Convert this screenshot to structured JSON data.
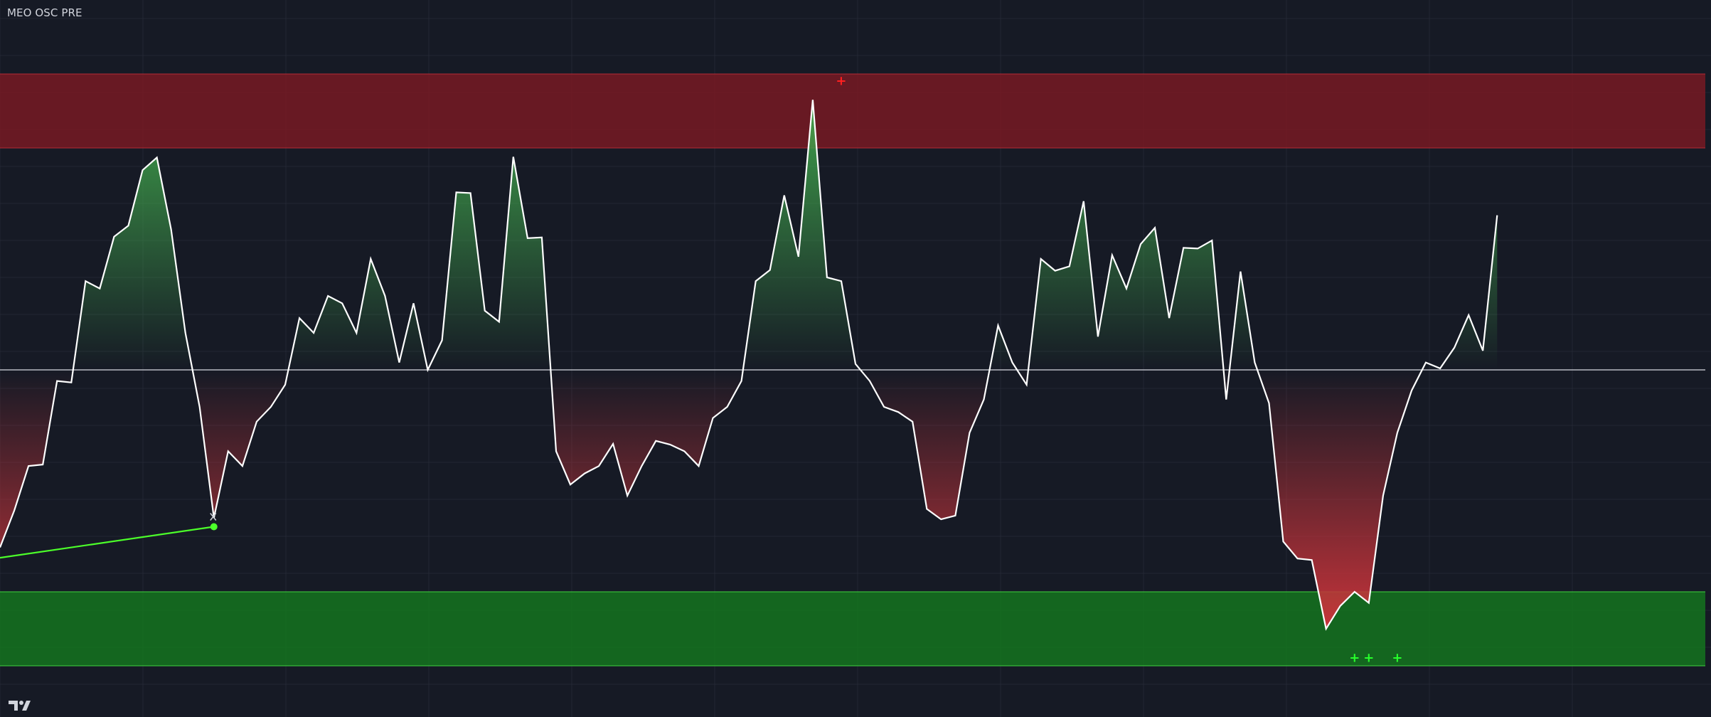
{
  "indicator": {
    "title": "MEO OSC PRE"
  },
  "logo": {
    "icon": "tradingview-logo-icon"
  },
  "chart_data": {
    "type": "line",
    "title": "MEO OSC PRE",
    "xlabel": "",
    "ylabel": "",
    "ylim": [
      -55,
      47
    ],
    "grid": true,
    "zero_line": 0,
    "zones": {
      "overbought": {
        "from": 30,
        "to": 40,
        "color": "#801922"
      },
      "oversold": {
        "from": -40,
        "to": -30,
        "color": "#13781f"
      }
    },
    "colors": {
      "line": "#ffffff",
      "positive_fill": "#3fa14b",
      "negative_fill": "#c4333a",
      "divergence": "#4cff2a",
      "signal_up": "#27ff2b",
      "signal_down": "#ff2020"
    },
    "series": [
      {
        "values": [
          -24,
          -19,
          -13,
          -12.8,
          -1.5,
          -1.7,
          12,
          11,
          18,
          19.5,
          27,
          28.7,
          19,
          5,
          -5,
          -20,
          -11,
          -13,
          -7,
          -5,
          -2,
          7,
          5,
          10,
          9,
          5,
          15,
          10,
          1,
          9,
          0,
          4,
          24,
          23.9,
          8,
          6.5,
          28.8,
          17.8,
          17.9,
          -11,
          -15.5,
          -14,
          -13,
          -10,
          -17,
          -13,
          -9.6,
          -10.1,
          -11,
          -13,
          -6.5,
          -5,
          -1.5,
          12,
          13.5,
          23.6,
          15.3,
          36.5,
          12.5,
          12,
          0.8,
          -1.5,
          -5,
          -5.7,
          -7,
          -18.8,
          -20.2,
          -19.7,
          -8.5,
          -4,
          6,
          1,
          -2,
          15,
          13.4,
          14,
          22.8,
          4.5,
          15.5,
          11,
          17,
          19.2,
          7,
          16.5,
          16.4,
          17.5,
          -4,
          13.3,
          1,
          -4.5,
          -23.2,
          -25.5,
          -25.7,
          -35,
          -31.9,
          -30,
          -31.5,
          -17,
          -8.5,
          -2.8,
          1,
          0.2,
          3,
          7.4,
          2.6,
          20.9
        ]
      }
    ],
    "divergence_line": {
      "x": [
        0,
        15
      ],
      "y": [
        -25.4,
        -21.2
      ]
    },
    "signals": [
      {
        "x": 59,
        "y": 39,
        "direction": "down",
        "symbol": "+"
      },
      {
        "x": 95,
        "y": -39,
        "direction": "up",
        "symbol": "+"
      },
      {
        "x": 96,
        "y": -39,
        "direction": "up",
        "symbol": "+"
      },
      {
        "x": 98,
        "y": -39,
        "direction": "up",
        "symbol": "+"
      }
    ]
  }
}
